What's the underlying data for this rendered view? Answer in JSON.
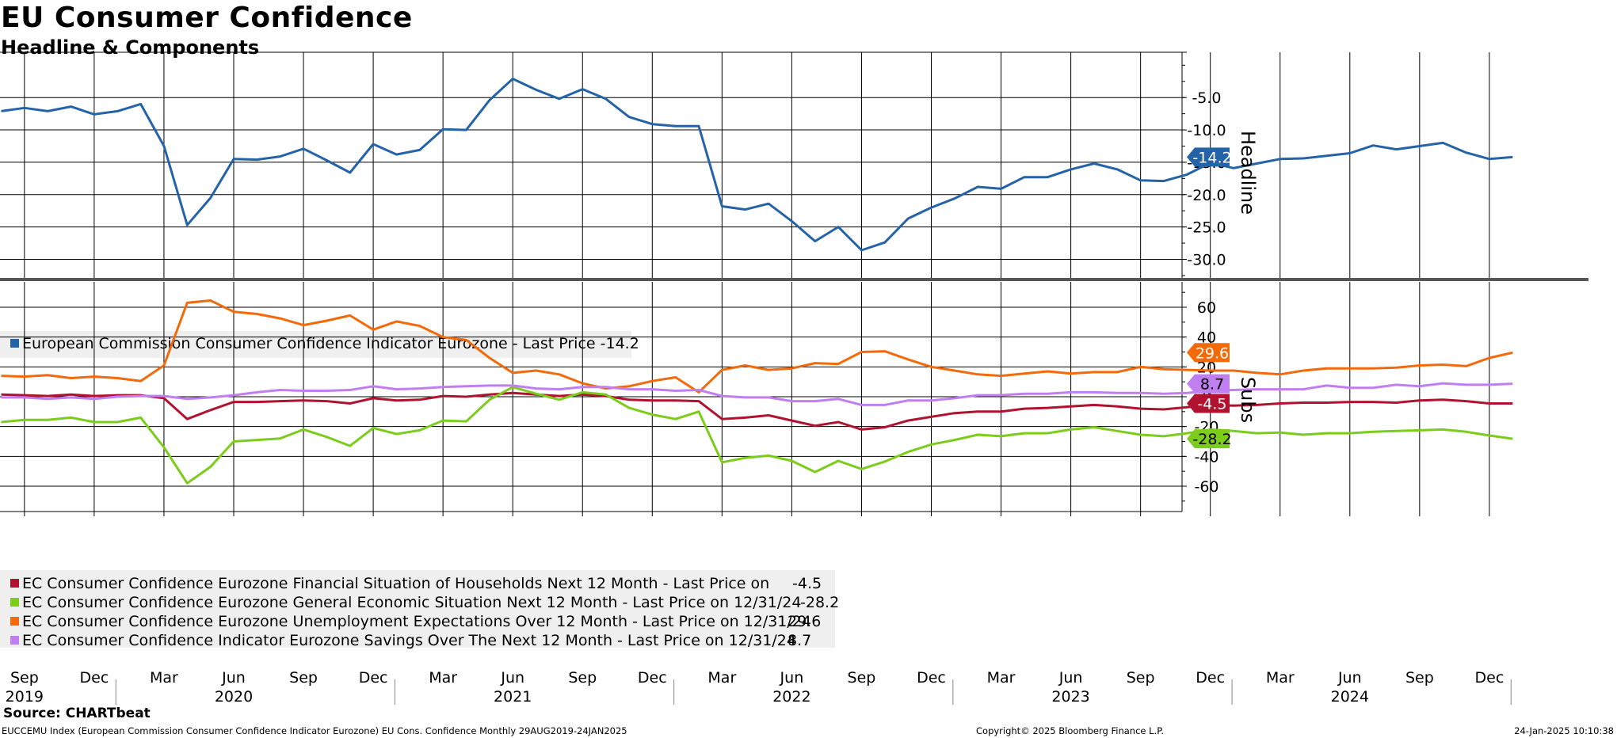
{
  "header": {
    "title": "EU Consumer Confidence",
    "subtitle": "Headline & Components"
  },
  "footer": {
    "source": "Source: CHARTbeat",
    "description": "EUCCEMU Index (European Commission Consumer Confidence Indicator Eurozone) EU Cons. Confidence  Monthly 29AUG2019-24JAN2025",
    "copyright": "Copyright© 2025 Bloomberg Finance L.P.",
    "timestamp": "24-Jan-2025 10:10:38"
  },
  "colors": {
    "headline": "#2563a8",
    "financial": "#b0132f",
    "general": "#7ccc1c",
    "unemployment": "#f26a0a",
    "savings": "#c07ef0",
    "grid": "#000000",
    "divider": "#555555",
    "legend_bg": "#efefef"
  },
  "chart_data": [
    {
      "type": "line",
      "panel": "top",
      "axis_title": "Headline",
      "ylim": [
        -33,
        2
      ],
      "yticks": [
        -5.0,
        -10.0,
        -15.0,
        -20.0,
        -25.0,
        -30.0
      ],
      "ytick_labels": [
        "-5.0",
        "-10.0",
        "-15.0",
        "-20.0",
        "-25.0",
        "-30.0"
      ],
      "grid": true,
      "legend_position": "bottom-left",
      "series": [
        {
          "key": "headline",
          "legend": "European Commission Consumer Confidence Indicator Eurozone - Last Price -14.2",
          "last_label": "-14.2",
          "start": "2019-08",
          "values": [
            -7.1,
            -6.6,
            -7.1,
            -6.4,
            -7.6,
            -7.1,
            -6.0,
            -12.5,
            -24.7,
            -20.5,
            -14.5,
            -14.6,
            -14.1,
            -12.9,
            -14.7,
            -16.6,
            -12.2,
            -13.8,
            -13.1,
            -9.9,
            -10.0,
            -5.4,
            -2.1,
            -3.8,
            -5.2,
            -3.7,
            -5.2,
            -8.0,
            -9.1,
            -9.4,
            -9.4,
            -21.8,
            -22.3,
            -21.4,
            -24.1,
            -27.2,
            -25.0,
            -28.6,
            -27.4,
            -23.7,
            -22.0,
            -20.6,
            -18.8,
            -19.1,
            -17.3,
            -17.3,
            -16.1,
            -15.2,
            -16.1,
            -17.8,
            -17.9,
            -16.9,
            -15.1,
            -15.9,
            -15.2,
            -14.5,
            -14.4,
            -14.0,
            -13.6,
            -12.4,
            -13.0,
            -12.5,
            -12.0,
            -13.5,
            -14.5,
            -14.2
          ]
        }
      ]
    },
    {
      "type": "line",
      "panel": "bottom",
      "axis_title": "Subs",
      "ylim": [
        -77,
        77
      ],
      "yticks": [
        60,
        40,
        20,
        0,
        -20,
        -40,
        -60
      ],
      "ytick_labels": [
        "60",
        "40",
        "20",
        "0",
        "-20",
        "-40",
        "-60"
      ],
      "grid": true,
      "legend_position": "bottom-left",
      "series": [
        {
          "key": "financial",
          "legend": "EC Consumer Confidence Eurozone Financial Situation of Households Next 12 Month - Last Price on",
          "legend_value": "-4.5",
          "last_label": "-4.5",
          "start": "2019-08",
          "values": [
            1.5,
            1.0,
            0.5,
            1.5,
            0.5,
            1.0,
            1.0,
            -1.0,
            -15.0,
            -9.0,
            -3.5,
            -3.5,
            -3.0,
            -2.5,
            -3.0,
            -4.5,
            -1.0,
            -2.5,
            -2.0,
            0.5,
            0.0,
            1.5,
            2.5,
            1.5,
            0.5,
            1.5,
            0.5,
            -2.0,
            -2.5,
            -2.5,
            -3.0,
            -15.0,
            -14.0,
            -12.5,
            -16.0,
            -19.5,
            -17.0,
            -22.0,
            -20.5,
            -16.0,
            -13.5,
            -11.0,
            -10.0,
            -10.0,
            -8.0,
            -7.5,
            -6.5,
            -5.5,
            -6.5,
            -8.0,
            -8.5,
            -7.0,
            -5.5,
            -6.0,
            -5.5,
            -4.5,
            -4.0,
            -4.0,
            -3.5,
            -3.5,
            -4.0,
            -2.5,
            -2.0,
            -3.0,
            -4.5,
            -4.5
          ]
        },
        {
          "key": "general",
          "legend": "EC Consumer Confidence Eurozone General Economic Situation Next 12 Month - Last Price on 12/31/24",
          "legend_value": "-28.2",
          "last_label": "-28.2",
          "start": "2019-08",
          "values": [
            -17.0,
            -15.5,
            -15.5,
            -14.0,
            -17.0,
            -17.0,
            -14.0,
            -34.0,
            -58.0,
            -47.0,
            -30.0,
            -29.0,
            -28.0,
            -22.0,
            -27.0,
            -33.0,
            -21.0,
            -25.0,
            -22.5,
            -16.0,
            -16.5,
            -2.0,
            6.5,
            2.0,
            -2.0,
            3.0,
            1.5,
            -7.5,
            -12.0,
            -15.0,
            -10.0,
            -44.0,
            -41.0,
            -39.5,
            -43.0,
            -50.5,
            -43.0,
            -48.5,
            -43.5,
            -37.0,
            -32.0,
            -29.0,
            -25.5,
            -26.5,
            -24.5,
            -24.5,
            -22.0,
            -20.5,
            -23.0,
            -25.5,
            -26.5,
            -24.5,
            -22.0,
            -23.0,
            -24.5,
            -24.0,
            -25.5,
            -24.5,
            -24.5,
            -23.5,
            -23.0,
            -22.5,
            -22.0,
            -23.5,
            -26.0,
            -28.2
          ]
        },
        {
          "key": "unemployment",
          "legend": "EC Consumer Confidence Eurozone Unemployment Expectations Over 12 Month - Last Price on 12/31/24",
          "legend_value": "29.6",
          "last_label": "29.6",
          "start": "2019-08",
          "values": [
            14.0,
            13.5,
            14.5,
            12.5,
            13.5,
            12.5,
            10.5,
            21.0,
            63.0,
            64.5,
            57.0,
            55.5,
            52.5,
            48.0,
            51.0,
            54.5,
            45.0,
            50.5,
            47.5,
            40.0,
            38.0,
            26.0,
            16.0,
            17.5,
            15.0,
            9.0,
            5.5,
            7.0,
            10.5,
            13.0,
            3.0,
            18.0,
            21.0,
            18.0,
            19.0,
            22.5,
            22.0,
            30.0,
            30.5,
            25.0,
            20.0,
            17.5,
            15.0,
            14.0,
            15.5,
            17.0,
            15.5,
            16.5,
            16.5,
            20.0,
            18.5,
            18.0,
            17.5,
            17.5,
            16.0,
            15.0,
            17.5,
            19.0,
            19.0,
            19.0,
            19.5,
            21.0,
            21.5,
            20.5,
            26.0,
            29.6
          ]
        },
        {
          "key": "savings",
          "legend": "EC Consumer Confidence Indicator Eurozone Savings Over The Next 12 Month - Last Price on 12/31/24",
          "legend_value": "8.7",
          "last_label": "8.7",
          "start": "2019-08",
          "values": [
            -0.5,
            -0.5,
            -1.5,
            -0.5,
            -1.5,
            0.0,
            0.5,
            0.5,
            -1.5,
            -0.5,
            1.0,
            3.0,
            4.5,
            4.0,
            4.0,
            4.5,
            7.0,
            5.0,
            5.5,
            6.5,
            7.0,
            7.5,
            7.5,
            5.5,
            5.0,
            6.5,
            6.5,
            5.0,
            5.0,
            4.0,
            4.5,
            0.5,
            -0.5,
            -0.5,
            -3.0,
            -3.0,
            -1.5,
            -5.5,
            -5.5,
            -2.5,
            -2.5,
            -1.0,
            1.0,
            1.0,
            2.0,
            2.0,
            3.0,
            3.0,
            2.5,
            2.5,
            2.0,
            2.5,
            4.0,
            4.5,
            5.0,
            5.0,
            5.0,
            7.5,
            6.0,
            6.0,
            8.0,
            7.0,
            9.0,
            8.0,
            8.0,
            8.7
          ]
        }
      ]
    }
  ],
  "x_axis": {
    "month_ticks": [
      {
        "label": "Sep",
        "date": "2019-09"
      },
      {
        "label": "Dec",
        "date": "2019-12"
      },
      {
        "label": "Mar",
        "date": "2020-03"
      },
      {
        "label": "Jun",
        "date": "2020-06"
      },
      {
        "label": "Sep",
        "date": "2020-09"
      },
      {
        "label": "Dec",
        "date": "2020-12"
      },
      {
        "label": "Mar",
        "date": "2021-03"
      },
      {
        "label": "Jun",
        "date": "2021-06"
      },
      {
        "label": "Sep",
        "date": "2021-09"
      },
      {
        "label": "Dec",
        "date": "2021-12"
      },
      {
        "label": "Mar",
        "date": "2022-03"
      },
      {
        "label": "Jun",
        "date": "2022-06"
      },
      {
        "label": "Sep",
        "date": "2022-09"
      },
      {
        "label": "Dec",
        "date": "2022-12"
      },
      {
        "label": "Mar",
        "date": "2023-03"
      },
      {
        "label": "Jun",
        "date": "2023-06"
      },
      {
        "label": "Sep",
        "date": "2023-09"
      },
      {
        "label": "Dec",
        "date": "2023-12"
      },
      {
        "label": "Mar",
        "date": "2024-03"
      },
      {
        "label": "Jun",
        "date": "2024-06"
      },
      {
        "label": "Sep",
        "date": "2024-09"
      },
      {
        "label": "Dec",
        "date": "2024-12"
      }
    ],
    "years": [
      {
        "label": "2019",
        "date": "2019-09"
      },
      {
        "label": "2020",
        "date": "2020-06"
      },
      {
        "label": "2021",
        "date": "2021-06"
      },
      {
        "label": "2022",
        "date": "2022-06"
      },
      {
        "label": "2023",
        "date": "2023-06"
      },
      {
        "label": "2024",
        "date": "2024-06"
      }
    ],
    "year_separators": [
      "2020-01",
      "2021-01",
      "2022-01",
      "2023-01",
      "2024-01",
      "2025-01"
    ]
  }
}
